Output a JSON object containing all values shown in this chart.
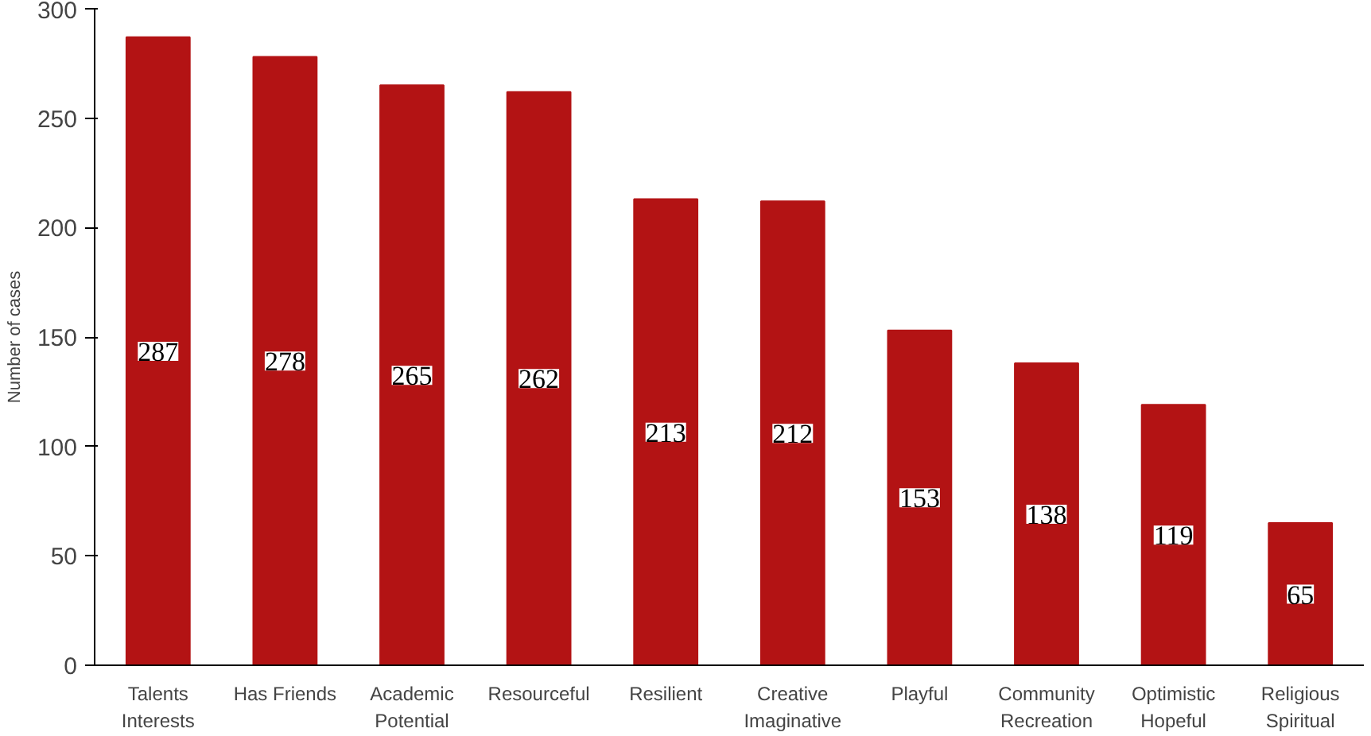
{
  "chart_data": {
    "type": "bar",
    "ylabel": "Number of cases",
    "categories": [
      "Talents\nInterests",
      "Has Friends",
      "Academic\nPotential",
      "Resourceful",
      "Resilient",
      "Creative\nImaginative",
      "Playful",
      "Community\nRecreation",
      "Optimistic\nHopeful",
      "Religious\nSpiritual"
    ],
    "values": [
      287,
      278,
      265,
      262,
      213,
      212,
      153,
      138,
      119,
      65
    ],
    "color": "#b31314",
    "ylim": [
      0,
      300
    ],
    "yticks": [
      0,
      50,
      100,
      150,
      200,
      250,
      300
    ],
    "grid": false,
    "data_labels": true
  }
}
